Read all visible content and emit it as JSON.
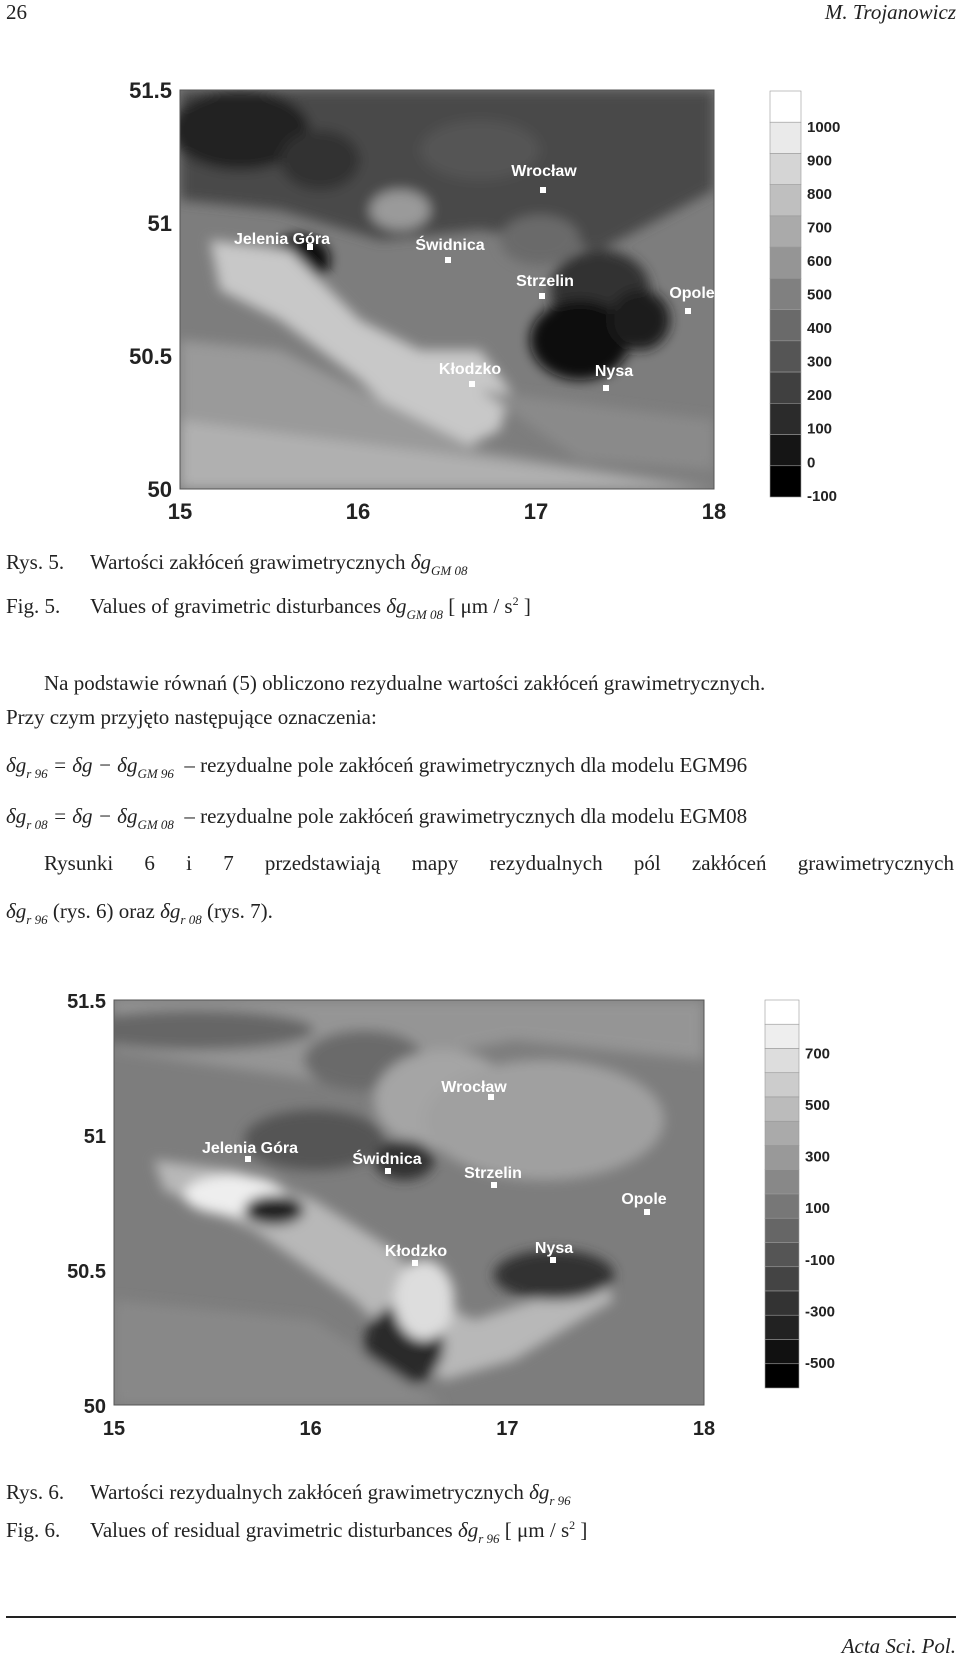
{
  "header": {
    "page_number": "26",
    "author": "M. Trojanowicz"
  },
  "figure5": {
    "y_ticks": [
      "51.5",
      "51",
      "50.5",
      "50"
    ],
    "x_ticks": [
      "15",
      "16",
      "17",
      "18"
    ],
    "cities": [
      "Wrocław",
      "Jelenia Góra",
      "Świdnica",
      "Strzelin",
      "Opole",
      "Kłodzko",
      "Nysa"
    ],
    "colorbar": [
      "1000",
      "900",
      "800",
      "700",
      "600",
      "500",
      "400",
      "300",
      "200",
      "100",
      "0",
      "-100"
    ],
    "caption_pl": {
      "label": "Rys. 5.",
      "text": "Wartości zakłóceń grawimetrycznych",
      "symbol": "δg",
      "subscript": "GM 08"
    },
    "caption_en": {
      "label": "Fig. 5.",
      "text": "Values of gravimetric disturbances",
      "symbol": "δg",
      "subscript": "GM 08",
      "unit": "[ μm / s",
      "unit_sup": "2",
      "unit_close": "]"
    }
  },
  "body": {
    "paragraph_1": "Na podstawie równań (5) obliczono rezydualne wartości zakłóceń grawimetrycznych.",
    "paragraph_2": "Przy czym przyjęto następujące oznaczenia:",
    "equation_1": {
      "lhs": "δg",
      "lhs_sub": "r 96",
      "rhs": "= δg − δg",
      "rhs_sub": "GM 96",
      "description": "– rezydualne pole zakłóceń grawimetrycznych dla modelu EGM96"
    },
    "equation_2": {
      "lhs": "δg",
      "lhs_sub": "r 08",
      "rhs": "= δg − δg",
      "rhs_sub": "GM 08",
      "description": "– rezydualne pole zakłóceń grawimetrycznych dla modelu EGM08"
    },
    "paragraph_3": "Rysunki 6 i 7 przedstawiają mapy rezydualnych pól zakłóceń grawimetrycznych",
    "paragraph_4": {
      "symbol_1": "δg",
      "sub_1": "r 96",
      "text_1": "(rys. 6) oraz",
      "symbol_2": "δg",
      "sub_2": "r 08",
      "text_2": "(rys. 7)."
    }
  },
  "figure6": {
    "y_ticks": [
      "51.5",
      "51",
      "50.5",
      "50"
    ],
    "x_ticks": [
      "15",
      "16",
      "17",
      "18"
    ],
    "cities": [
      "Wrocław",
      "Jelenia Góra",
      "Świdnica",
      "Strzelin",
      "Opole",
      "Kłodzko",
      "Nysa"
    ],
    "colorbar": [
      "700",
      "500",
      "300",
      "100",
      "-100",
      "-300",
      "-500"
    ],
    "caption_pl": {
      "label": "Rys. 6.",
      "text": "Wartości rezydualnych zakłóceń grawimetrycznych",
      "symbol": "δg",
      "subscript": "r 96"
    },
    "caption_en": {
      "label": "Fig. 6.",
      "text": "Values of residual gravimetric disturbances",
      "symbol": "δg",
      "subscript": "r 96",
      "unit": "[ μm / s",
      "unit_sup": "2",
      "unit_close": "]"
    }
  },
  "footer": {
    "journal": "Acta Sci. Pol."
  }
}
